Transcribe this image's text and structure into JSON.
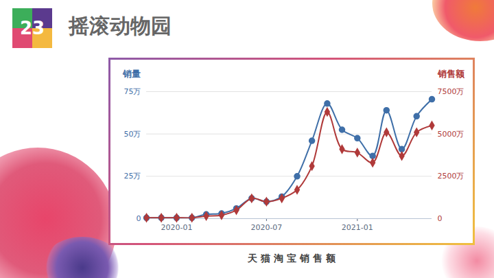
{
  "slide_number": "23",
  "title": "摇滚动物园",
  "caption": "天 猫 淘 宝 销 售 额",
  "chart_data": {
    "type": "line",
    "y_label": "销量",
    "y2_label": "销售额",
    "x": [
      "2019-11",
      "2019-12",
      "2020-01",
      "2020-02",
      "2020-03",
      "2020-04",
      "2020-05",
      "2020-06",
      "2020-07",
      "2020-08",
      "2020-09",
      "2020-10",
      "2020-11",
      "2020-12",
      "2021-01",
      "2021-02",
      "2021-03",
      "2021-04",
      "2021-05",
      "2021-06"
    ],
    "xlim": [
      "2019-11",
      "2021-06"
    ],
    "xticks": [
      "2020-01",
      "2020-07",
      "2021-01"
    ],
    "ylim": [
      0,
      75
    ],
    "yticks": [
      0,
      {
        "value": 25,
        "label": "25万"
      },
      {
        "value": 50,
        "label": "50万"
      },
      {
        "value": 75,
        "label": "75万"
      }
    ],
    "y2lim": [
      0,
      7500
    ],
    "y2ticks": [
      0,
      {
        "value": 2500,
        "label": "2500万"
      },
      {
        "value": 5000,
        "label": "5000万"
      },
      {
        "value": 7500,
        "label": "7500万"
      }
    ],
    "grid": true,
    "series": [
      {
        "name": "销量",
        "color": "#3f6fa8",
        "marker": "circle",
        "values": [
          0.5,
          0.5,
          0.5,
          0.5,
          2.5,
          3,
          6,
          12,
          10,
          13,
          25,
          46,
          68,
          52.5,
          47.5,
          37,
          64,
          41,
          60.5,
          70.5
        ]
      },
      {
        "name": "销售额",
        "color": "#b03a3a",
        "marker": "diamond",
        "axis": "y2",
        "values": [
          50,
          50,
          50,
          50,
          150,
          200,
          500,
          1200,
          1000,
          1200,
          1700,
          3100,
          6300,
          4100,
          3900,
          3300,
          5100,
          3700,
          5100,
          5500
        ]
      }
    ]
  }
}
